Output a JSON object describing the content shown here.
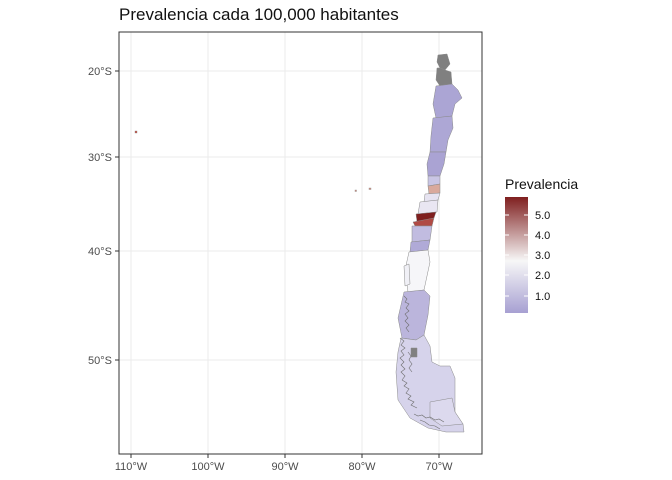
{
  "title": "Prevalencia cada 100,000 habitantes",
  "x_ticks": [
    "110°W",
    "100°W",
    "90°W",
    "80°W",
    "70°W"
  ],
  "y_ticks": [
    "20°S",
    "30°S",
    "40°S",
    "50°S"
  ],
  "legend": {
    "title": "Prevalencia",
    "labels": [
      "5.0",
      "4.0",
      "3.0",
      "2.0",
      "1.0"
    ],
    "colors": {
      "high": "#7f1f1f",
      "mid": "#f7f7f7",
      "low": "#a7a0d2",
      "na": "#808080"
    }
  },
  "colors": {
    "panel_border": "#333333",
    "grid": "#ebebeb",
    "outline": "#8a8a8a"
  }
}
